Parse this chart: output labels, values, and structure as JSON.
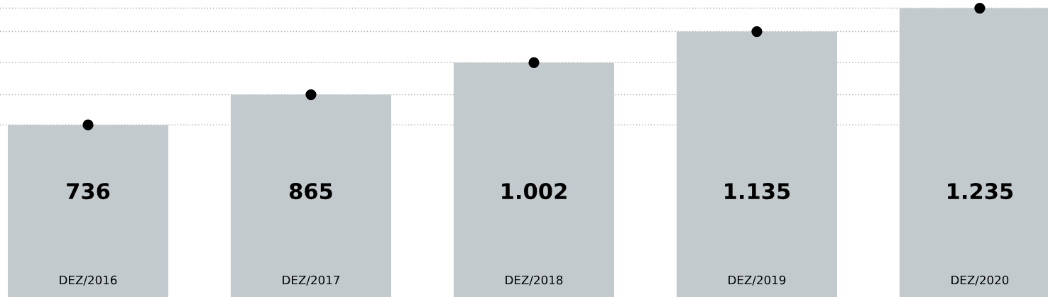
{
  "chart_data": {
    "type": "bar",
    "categories": [
      "DEZ/2016",
      "DEZ/2017",
      "DEZ/2018",
      "DEZ/2019",
      "DEZ/2020"
    ],
    "series": [
      {
        "color": "#c3cacd",
        "values": [
          736,
          865,
          1002,
          1135,
          1235
        ],
        "value_labels": [
          "736",
          "865",
          "1.002",
          "1.135",
          "1.235"
        ]
      },
      {
        "type": "scatter",
        "color": "#000000",
        "values": [
          736,
          865,
          1002,
          1135,
          1235
        ]
      }
    ],
    "ylim": [
      0,
      1270
    ],
    "tick_labels": "x",
    "marker": "circle",
    "ref_lines": [
      {
        "axis": "y",
        "value": 736,
        "color": "#aaaaaa",
        "line_style": "dotted"
      },
      {
        "axis": "y",
        "value": 865,
        "color": "#aaaaaa",
        "line_style": "dotted"
      },
      {
        "axis": "y",
        "value": 1002,
        "color": "#aaaaaa",
        "line_style": "dotted"
      },
      {
        "axis": "y",
        "value": 1135,
        "color": "#aaaaaa",
        "line_style": "dotted"
      },
      {
        "axis": "y",
        "value": 1235,
        "color": "#aaaaaa",
        "line_style": "dotted"
      }
    ]
  }
}
